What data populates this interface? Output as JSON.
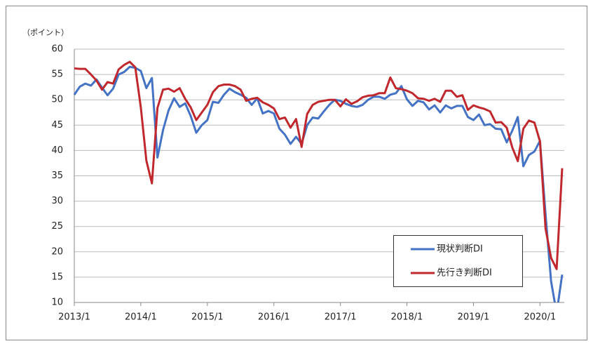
{
  "chart_data": {
    "type": "line",
    "y_axis_label": "（ポイント）",
    "categories": [
      "2013/1",
      null,
      null,
      null,
      null,
      null,
      null,
      null,
      null,
      null,
      null,
      null,
      "2014/1",
      null,
      null,
      null,
      null,
      null,
      null,
      null,
      null,
      null,
      null,
      null,
      "2015/1",
      null,
      null,
      null,
      null,
      null,
      null,
      null,
      null,
      null,
      null,
      null,
      "2016/1",
      null,
      null,
      null,
      null,
      null,
      null,
      null,
      null,
      null,
      null,
      null,
      "2017/1",
      null,
      null,
      null,
      null,
      null,
      null,
      null,
      null,
      null,
      null,
      null,
      "2018/1",
      null,
      null,
      null,
      null,
      null,
      null,
      null,
      null,
      null,
      null,
      null,
      "2019/1",
      null,
      null,
      null,
      null,
      null,
      null,
      null,
      null,
      null,
      null,
      null,
      "2020/1",
      null,
      null,
      null,
      null
    ],
    "series": [
      {
        "name": "現状判断DI",
        "color": "#4472c4",
        "values": [
          51.0,
          52.6,
          53.2,
          52.8,
          54.0,
          52.4,
          50.9,
          52.2,
          55.0,
          55.5,
          56.5,
          56.3,
          55.7,
          52.3,
          54.3,
          38.6,
          44.0,
          47.9,
          50.3,
          48.6,
          49.3,
          46.8,
          43.5,
          45.0,
          46.0,
          49.6,
          49.4,
          51.0,
          52.2,
          51.5,
          51.0,
          50.4,
          49.0,
          50.3,
          47.3,
          47.8,
          47.3,
          44.3,
          43.1,
          41.3,
          42.7,
          41.3,
          45.0,
          46.5,
          46.3,
          47.7,
          49.0,
          50.0,
          49.8,
          49.2,
          48.8,
          48.6,
          49.0,
          50.0,
          50.6,
          50.6,
          50.2,
          51.0,
          51.3,
          52.7,
          50.1,
          48.8,
          49.8,
          49.5,
          48.1,
          48.9,
          47.5,
          48.9,
          48.3,
          48.8,
          48.8,
          46.6,
          46.0,
          47.1,
          45.0,
          45.2,
          44.3,
          44.2,
          41.6,
          43.9,
          46.6,
          36.9,
          39.1,
          39.8,
          41.9,
          27.4,
          14.2,
          7.9,
          15.5
        ]
      },
      {
        "name": "先行き判断DI",
        "color": "#c0282d",
        "values": [
          56.2,
          56.1,
          56.1,
          55.0,
          53.8,
          52.0,
          53.5,
          53.2,
          56.0,
          56.9,
          57.5,
          56.4,
          48.5,
          38.0,
          33.5,
          48.4,
          52.0,
          52.2,
          51.6,
          52.3,
          50.2,
          48.5,
          46.0,
          47.5,
          49.0,
          51.5,
          52.7,
          53.0,
          53.0,
          52.7,
          52.0,
          49.8,
          50.2,
          50.4,
          49.5,
          49.0,
          48.3,
          46.2,
          46.5,
          44.5,
          46.2,
          40.7,
          47.2,
          49.0,
          49.6,
          49.8,
          50.0,
          50.0,
          48.7,
          50.1,
          49.2,
          49.7,
          50.5,
          50.8,
          50.9,
          51.3,
          51.3,
          54.4,
          52.3,
          52.1,
          51.8,
          51.3,
          50.3,
          50.2,
          49.8,
          50.2,
          49.6,
          51.8,
          51.8,
          50.6,
          50.9,
          48.0,
          48.9,
          48.5,
          48.2,
          47.7,
          45.5,
          45.6,
          44.5,
          40.6,
          37.9,
          44.3,
          45.9,
          45.5,
          41.8,
          24.6,
          18.8,
          16.6,
          36.5
        ]
      }
    ],
    "ylim": [
      10,
      60
    ],
    "yticks": [
      10,
      15,
      20,
      25,
      30,
      35,
      40,
      45,
      50,
      55,
      60
    ],
    "grid": true
  }
}
